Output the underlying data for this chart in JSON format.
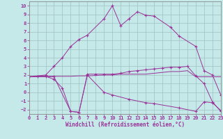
{
  "xlabel": "Windchill (Refroidissement éolien,°C)",
  "bg_color": "#c5e8e8",
  "line_color": "#993399",
  "grid_color": "#a0c0c0",
  "xlim": [
    0,
    23
  ],
  "ylim": [
    -2.5,
    10.5
  ],
  "xticks": [
    0,
    1,
    2,
    3,
    4,
    5,
    6,
    7,
    8,
    9,
    10,
    11,
    12,
    13,
    14,
    15,
    16,
    17,
    18,
    19,
    20,
    21,
    22,
    23
  ],
  "yticks": [
    -2,
    -1,
    0,
    1,
    2,
    3,
    4,
    5,
    6,
    7,
    8,
    9,
    10
  ],
  "curve_top_x": [
    0,
    2,
    3,
    4,
    5,
    6,
    7,
    9,
    10,
    11,
    12,
    13,
    14,
    15,
    17,
    18,
    20,
    21,
    22,
    23
  ],
  "curve_top_y": [
    1.8,
    2.0,
    3.0,
    4.0,
    5.3,
    6.1,
    6.6,
    8.5,
    10.0,
    7.7,
    8.5,
    9.3,
    8.9,
    8.8,
    7.5,
    6.5,
    5.3,
    2.5,
    2.0,
    -0.3
  ],
  "curve_mid1_x": [
    0,
    1,
    2,
    3,
    4,
    5,
    6,
    7,
    8,
    9,
    10,
    11,
    12,
    13,
    14,
    15,
    16,
    17,
    18,
    19,
    20,
    21,
    22,
    23
  ],
  "curve_mid1_y": [
    1.8,
    1.85,
    1.85,
    1.85,
    1.85,
    1.85,
    1.9,
    1.9,
    1.95,
    2.0,
    2.0,
    2.1,
    2.1,
    2.1,
    2.1,
    2.2,
    2.3,
    2.4,
    2.4,
    2.5,
    1.8,
    1.8,
    1.8,
    1.8
  ],
  "curve_mid2_x": [
    0,
    1,
    2,
    3,
    4,
    5,
    6,
    7,
    8,
    9,
    10,
    11,
    12,
    13,
    14,
    15,
    16,
    17,
    18,
    19,
    20,
    21,
    22,
    23
  ],
  "curve_mid2_y": [
    1.8,
    1.85,
    1.85,
    1.5,
    0.5,
    -2.2,
    -2.3,
    2.1,
    2.1,
    2.1,
    2.1,
    2.2,
    2.4,
    2.5,
    2.6,
    2.7,
    2.8,
    2.9,
    2.9,
    3.0,
    1.9,
    1.0,
    -1.1,
    -2.2
  ],
  "curve_bot_x": [
    0,
    3,
    5,
    6,
    7,
    9,
    10,
    12,
    14,
    15,
    18,
    20,
    21,
    22,
    23
  ],
  "curve_bot_y": [
    1.8,
    1.8,
    -2.2,
    -2.3,
    2.0,
    0.0,
    -0.3,
    -0.8,
    -1.2,
    -1.3,
    -1.8,
    -2.2,
    -1.1,
    -1.2,
    -2.1
  ]
}
